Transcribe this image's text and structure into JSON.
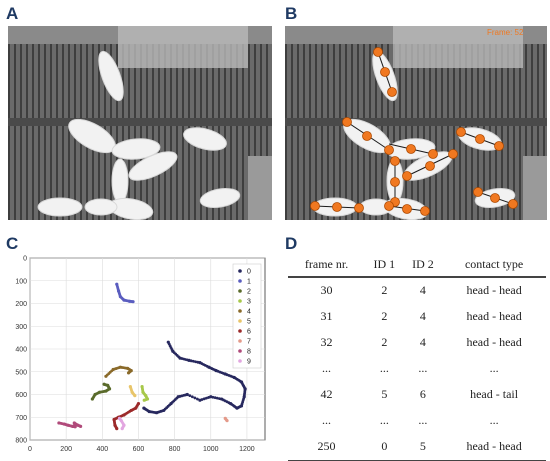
{
  "panels": {
    "a": "A",
    "b": "B",
    "c": "C",
    "d": "D"
  },
  "photo_b": {
    "frame_label": "Frame: 52",
    "marker_color": "#f07820"
  },
  "chart_data": {
    "type": "scatter",
    "title": "",
    "xlabel": "",
    "ylabel": "",
    "xlim": [
      0,
      1300
    ],
    "ylim": [
      800,
      0
    ],
    "x_ticks": [
      "0",
      "200",
      "400",
      "600",
      "800",
      "1000",
      "1200"
    ],
    "y_ticks": [
      "0",
      "100",
      "200",
      "300",
      "400",
      "500",
      "600",
      "700",
      "800"
    ],
    "grid": true,
    "legend_position": "right",
    "series": [
      {
        "name": "0",
        "color": "#27285e",
        "points": [
          [
            765,
            370
          ],
          [
            790,
            410
          ],
          [
            830,
            440
          ],
          [
            880,
            450
          ],
          [
            940,
            460
          ],
          [
            990,
            480
          ],
          [
            1030,
            495
          ],
          [
            1080,
            510
          ],
          [
            1130,
            525
          ],
          [
            1170,
            545
          ],
          [
            1190,
            575
          ],
          [
            1185,
            610
          ],
          [
            1170,
            650
          ],
          [
            1145,
            660
          ],
          [
            1110,
            640
          ],
          [
            1060,
            620
          ],
          [
            1000,
            610
          ],
          [
            940,
            625
          ],
          [
            870,
            600
          ],
          [
            820,
            610
          ],
          [
            780,
            640
          ],
          [
            740,
            670
          ],
          [
            700,
            680
          ],
          [
            660,
            675
          ],
          [
            630,
            660
          ]
        ]
      },
      {
        "name": "1",
        "color": "#5a5dbf",
        "points": [
          [
            480,
            115
          ],
          [
            490,
            145
          ],
          [
            500,
            170
          ],
          [
            520,
            185
          ],
          [
            550,
            190
          ],
          [
            570,
            192
          ]
        ]
      },
      {
        "name": "2",
        "color": "#5a6b2b",
        "points": [
          [
            345,
            620
          ],
          [
            360,
            600
          ],
          [
            385,
            590
          ],
          [
            420,
            585
          ],
          [
            440,
            575
          ],
          [
            430,
            560
          ],
          [
            410,
            555
          ]
        ]
      },
      {
        "name": "3",
        "color": "#a7c84a",
        "points": [
          [
            620,
            565
          ],
          [
            625,
            590
          ],
          [
            640,
            605
          ],
          [
            650,
            620
          ],
          [
            632,
            625
          ]
        ]
      },
      {
        "name": "4",
        "color": "#8a6a2a",
        "points": [
          [
            420,
            520
          ],
          [
            460,
            490
          ],
          [
            500,
            480
          ],
          [
            540,
            485
          ],
          [
            560,
            495
          ],
          [
            545,
            505
          ]
        ]
      },
      {
        "name": "5",
        "color": "#e8c56a",
        "points": [
          [
            555,
            565
          ],
          [
            565,
            590
          ],
          [
            580,
            605
          ]
        ]
      },
      {
        "name": "6",
        "color": "#9c2a2a",
        "points": [
          [
            480,
            750
          ],
          [
            470,
            735
          ],
          [
            465,
            710
          ],
          [
            490,
            700
          ],
          [
            520,
            690
          ],
          [
            560,
            670
          ],
          [
            585,
            660
          ],
          [
            600,
            640
          ]
        ]
      },
      {
        "name": "7",
        "color": "#e49a8a",
        "points": [
          [
            1080,
            705
          ],
          [
            1090,
            715
          ]
        ]
      },
      {
        "name": "8",
        "color": "#b04a7a",
        "points": [
          [
            160,
            725
          ],
          [
            190,
            730
          ],
          [
            210,
            735
          ],
          [
            235,
            740
          ],
          [
            250,
            742
          ],
          [
            245,
            725
          ],
          [
            265,
            735
          ],
          [
            280,
            740
          ]
        ]
      },
      {
        "name": "9",
        "color": "#e2a6e0",
        "points": [
          [
            495,
            705
          ],
          [
            505,
            715
          ],
          [
            520,
            735
          ],
          [
            510,
            750
          ]
        ]
      }
    ]
  },
  "table": {
    "headers": [
      "frame nr.",
      "ID 1",
      "ID 2",
      "contact type"
    ],
    "rows": [
      [
        "30",
        "2",
        "4",
        "head - head"
      ],
      [
        "31",
        "2",
        "4",
        "head - head"
      ],
      [
        "32",
        "2",
        "4",
        "head - head"
      ],
      [
        "...",
        "...",
        "...",
        "..."
      ],
      [
        "42",
        "5",
        "6",
        "head - tail"
      ],
      [
        "...",
        "...",
        "...",
        "..."
      ],
      [
        "250",
        "0",
        "5",
        "head - head"
      ]
    ]
  }
}
